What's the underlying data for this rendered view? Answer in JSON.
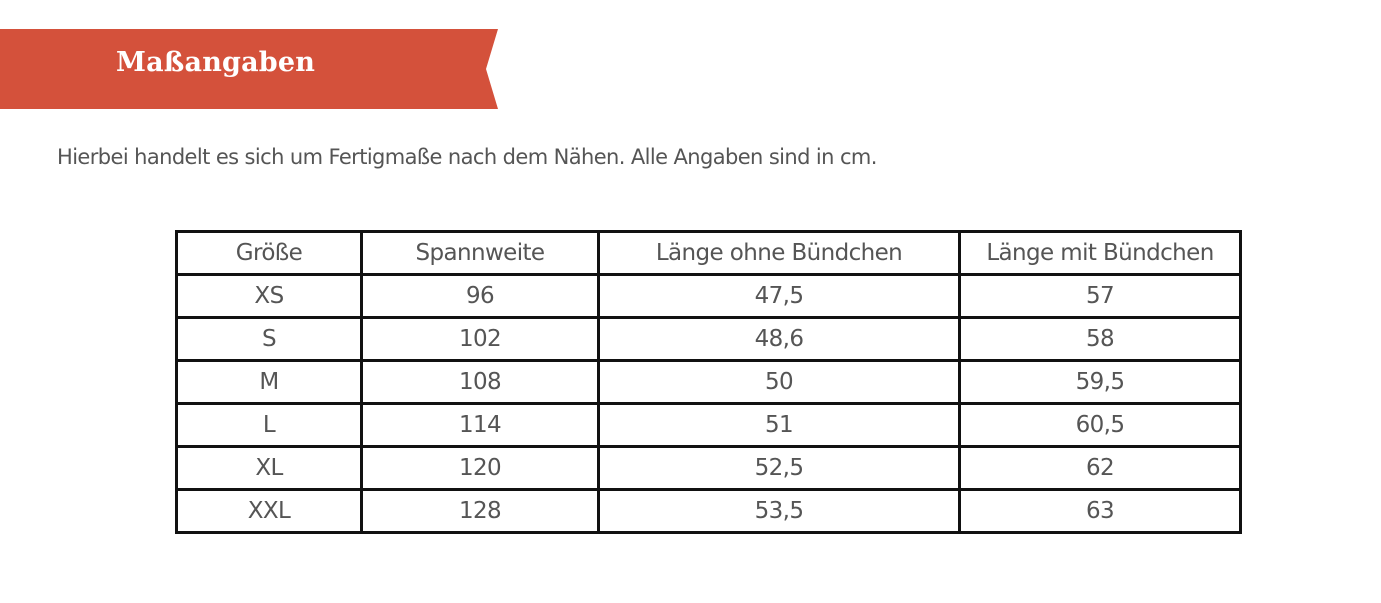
{
  "banner": {
    "title": "Maßangaben",
    "color": "#d4513b"
  },
  "intro_text": "Hierbei handelt es sich um Fertigmaße nach dem Nähen. Alle Angaben sind in cm.",
  "table": {
    "headers": [
      "Größe",
      "Spannweite",
      "Länge ohne Bündchen",
      "Länge mit Bündchen"
    ],
    "rows": [
      [
        "XS",
        "96",
        "47,5",
        "57"
      ],
      [
        "S",
        "102",
        "48,6",
        "58"
      ],
      [
        "M",
        "108",
        "50",
        "59,5"
      ],
      [
        "L",
        "114",
        "51",
        "60,5"
      ],
      [
        "XL",
        "120",
        "52,5",
        "62"
      ],
      [
        "XXL",
        "128",
        "53,5",
        "63"
      ]
    ]
  }
}
